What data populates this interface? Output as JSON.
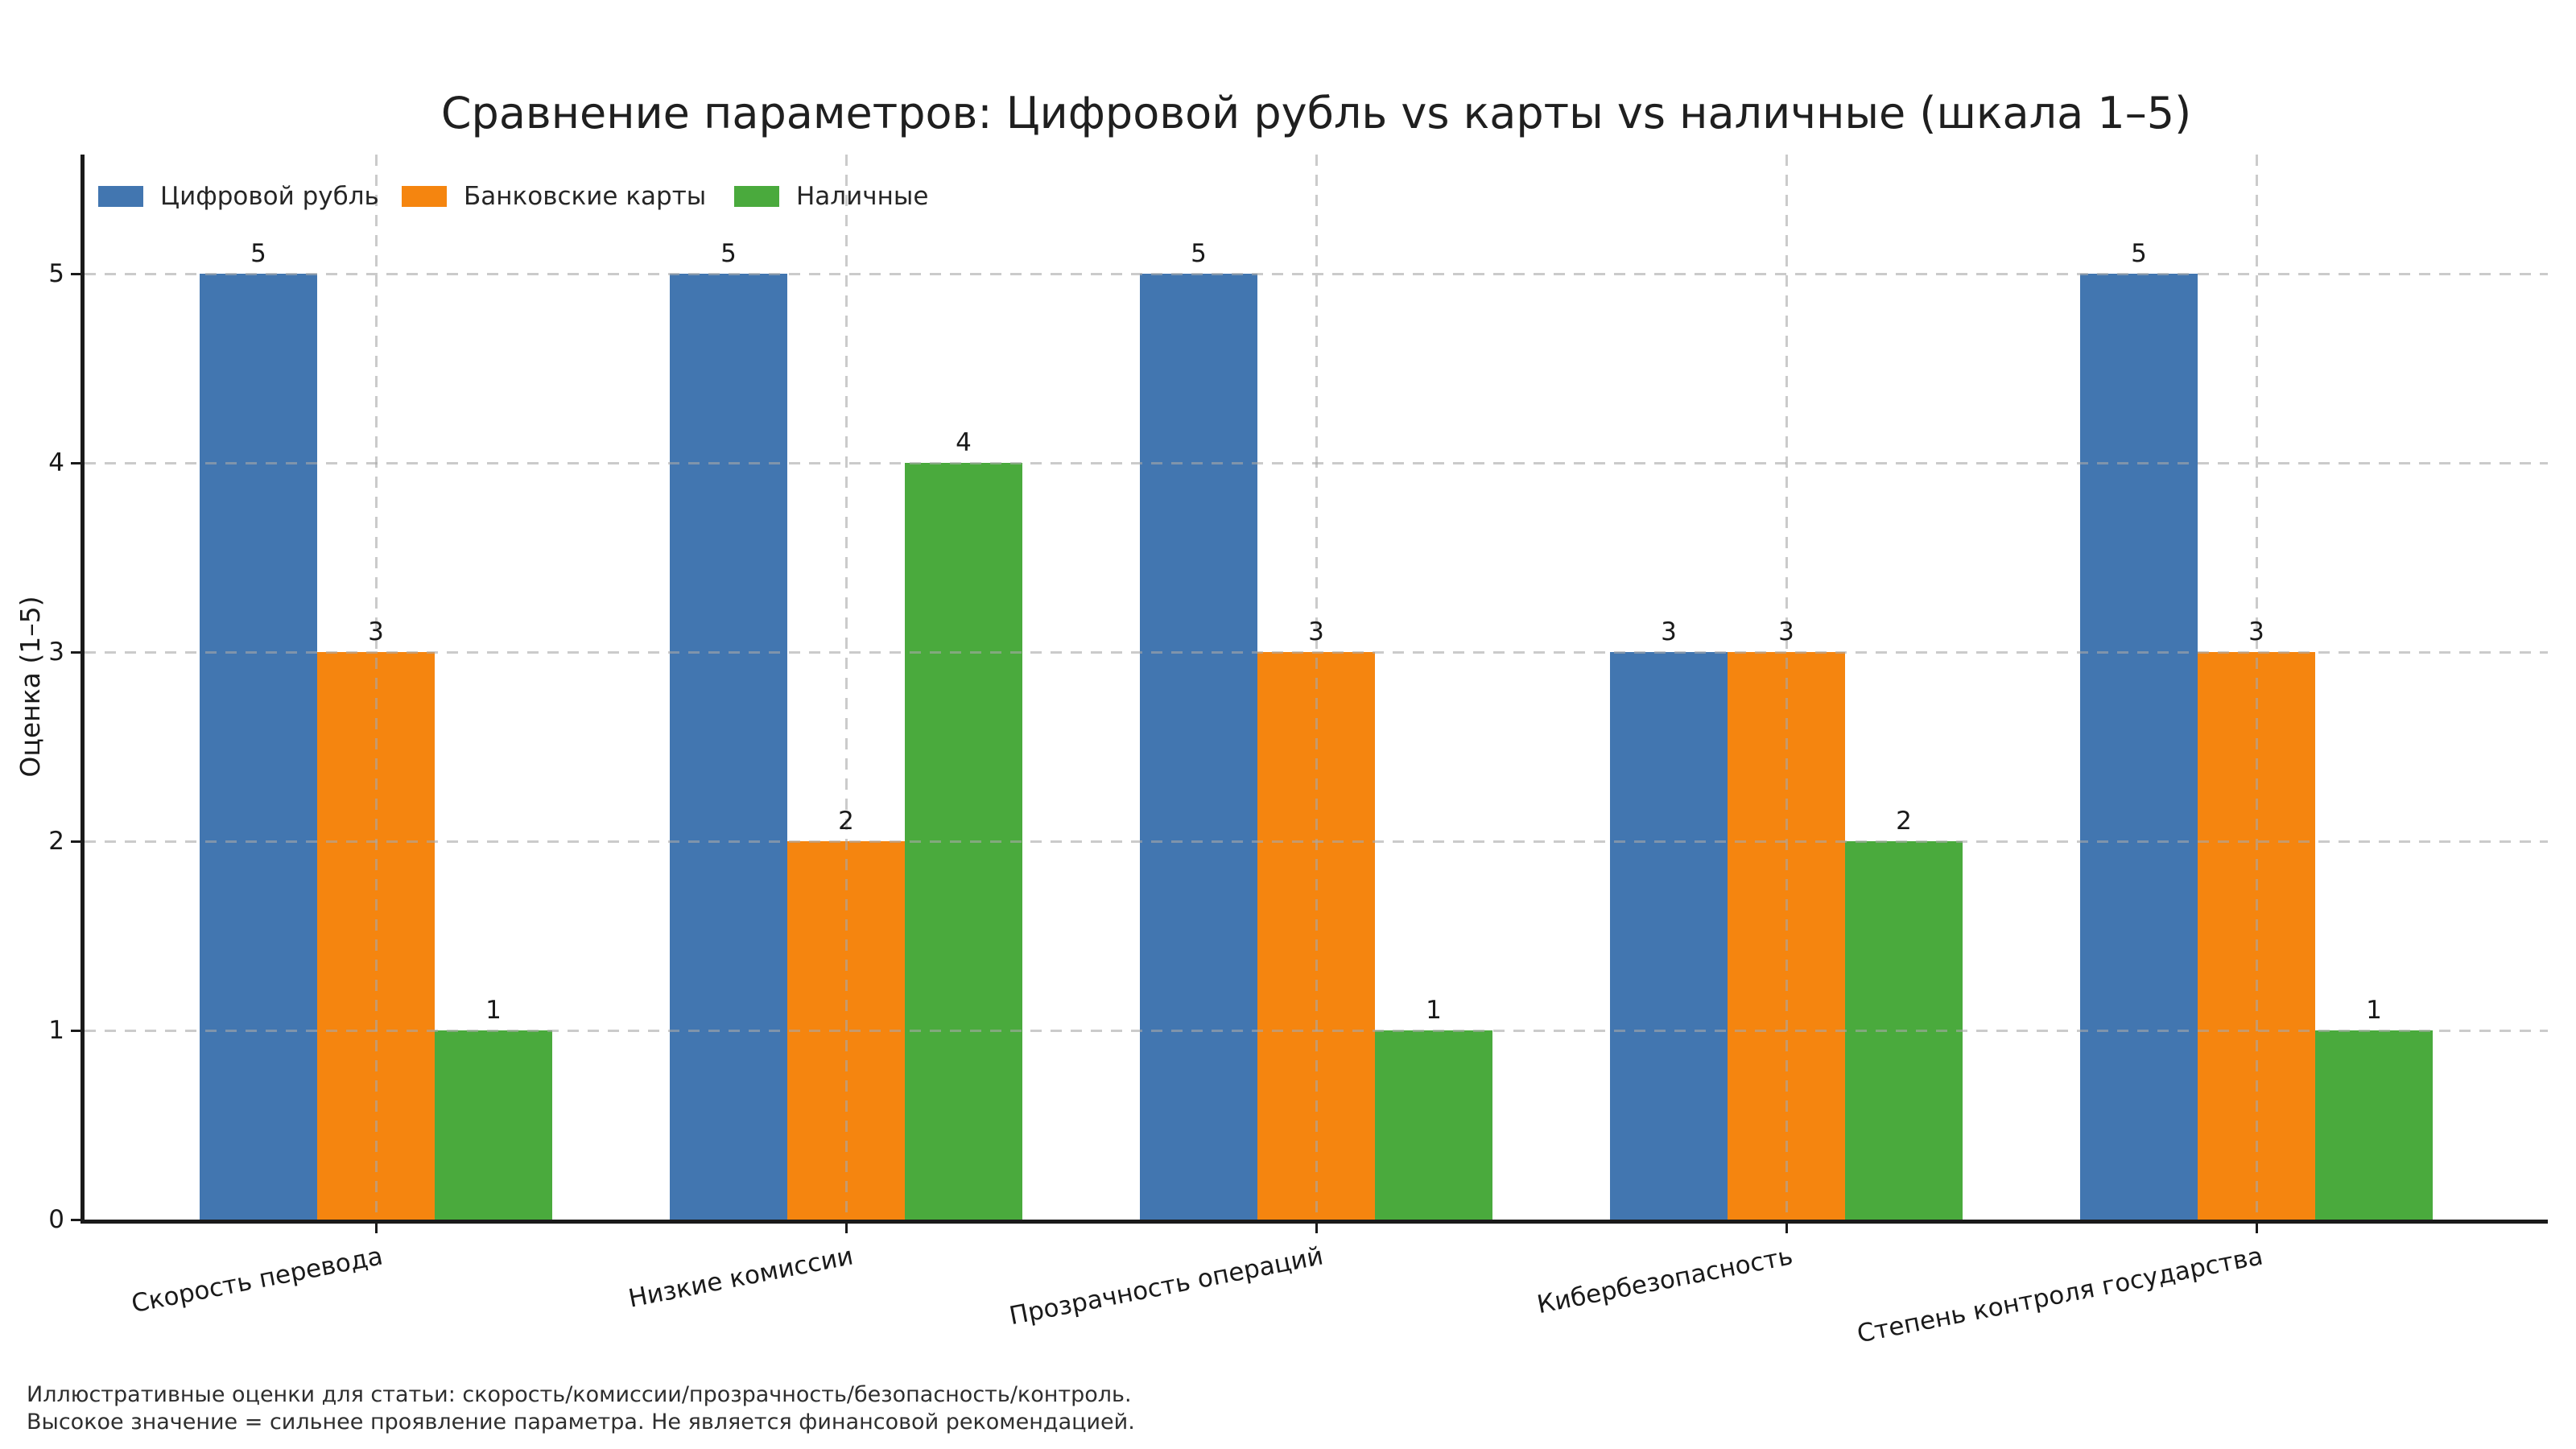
{
  "figure": {
    "title": "Сравнение параметров: Цифровой рубль vs карты vs наличные (шкала 1–5)",
    "ylabel": "Оценка (1–5)",
    "footnote1": "Иллюстративные оценки для статьи: скорость/комиссии/прозрачность/безопасность/контроль.",
    "footnote2": "Высокое значение = сильнее проявление параметра. Не является финансовой рекомендацией."
  },
  "colors": {
    "background": "#ffffff",
    "text": "#1a1a1a",
    "footnote": "#2e2e2e",
    "grid": "#c9c9c9",
    "axis": "#1a1a1a"
  },
  "chart_data": {
    "type": "bar",
    "title": "Сравнение параметров: Цифровой рубль vs карты vs наличные (шкала 1–5)",
    "ylabel": "Оценка (1–5)",
    "categories": [
      "Скорость перевода",
      "Низкие комиссии",
      "Прозрачность операций",
      "Кибербезопасность",
      "Степень контроля государства"
    ],
    "series": [
      {
        "name": "Цифровой рубль",
        "color": "#4276b0",
        "values": [
          5,
          5,
          5,
          3,
          5
        ]
      },
      {
        "name": "Банковские карты",
        "color": "#f5850f",
        "values": [
          3,
          2,
          3,
          3,
          3
        ]
      },
      {
        "name": "Наличные",
        "color": "#4aaa3d",
        "values": [
          1,
          4,
          1,
          2,
          1
        ]
      }
    ],
    "yticks": [
      0,
      1,
      2,
      3,
      4,
      5
    ],
    "ylim": [
      0,
      5.63
    ],
    "xtick_rotation_deg": 11,
    "grid": true,
    "grid_linestyle": "dashed",
    "grid_over_bars": true,
    "legend_position": "upper left",
    "value_labels": true
  }
}
